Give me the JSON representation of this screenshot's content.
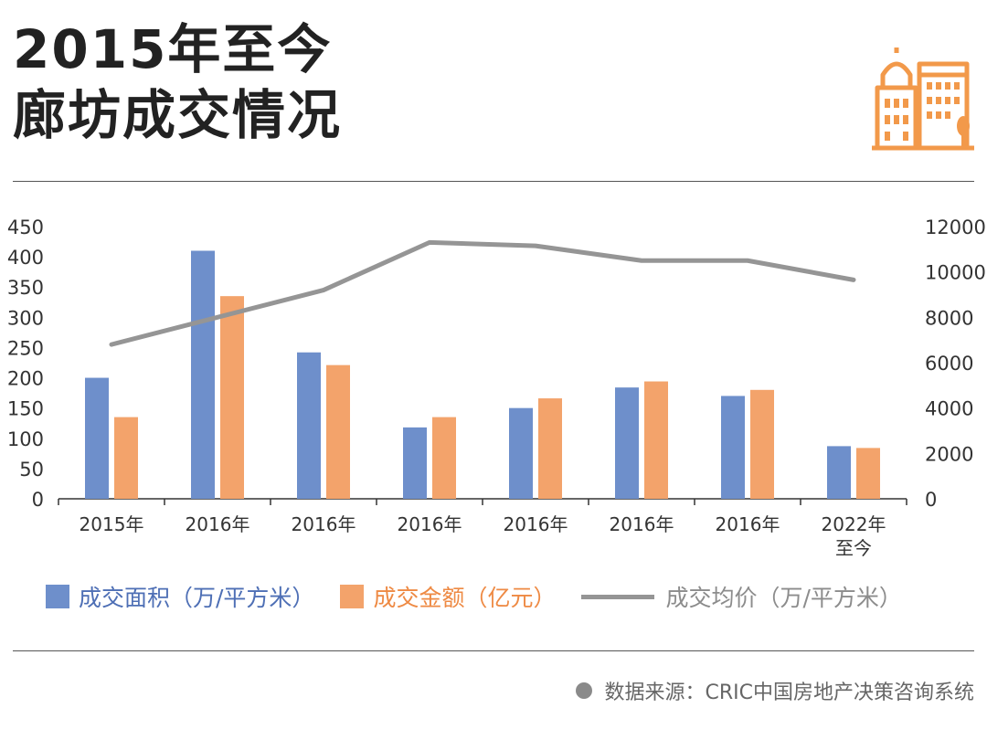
{
  "header": {
    "title_line1": "2015年至今",
    "title_line2": "廊坊成交情况"
  },
  "logo": {
    "icon": "city-buildings-icon",
    "color": "#f2994a"
  },
  "chart_data": {
    "type": "bar",
    "categories": [
      "2015年",
      "2016年",
      "2016年",
      "2016年",
      "2016年",
      "2016年",
      "2016年",
      "2022年\n至今"
    ],
    "series": [
      {
        "name": "成交面积（万/平方米）",
        "type": "bar",
        "axis": "left",
        "color": "#6e8fcb",
        "values": [
          200,
          410,
          242,
          118,
          150,
          184,
          170,
          87
        ]
      },
      {
        "name": "成交金额（亿元）",
        "type": "bar",
        "axis": "left",
        "color": "#f3a36b",
        "values": [
          135,
          335,
          221,
          135,
          166,
          194,
          180,
          84
        ]
      },
      {
        "name": "成交均价（万/平方米）",
        "type": "line",
        "axis": "right",
        "color": "#959595",
        "values": [
          6800,
          8000,
          9200,
          11300,
          11150,
          10500,
          10500,
          9650
        ]
      }
    ],
    "y_left": {
      "min": 0,
      "max": 450,
      "ticks": [
        0,
        50,
        100,
        150,
        200,
        250,
        300,
        350,
        400,
        450
      ]
    },
    "y_right": {
      "min": 0,
      "max": 12000,
      "ticks": [
        0,
        2000,
        4000,
        6000,
        8000,
        10000,
        12000
      ]
    },
    "grid": false,
    "legend": "bottom"
  },
  "source": {
    "text": "数据来源：CRIC中国房地产决策咨询系统"
  }
}
